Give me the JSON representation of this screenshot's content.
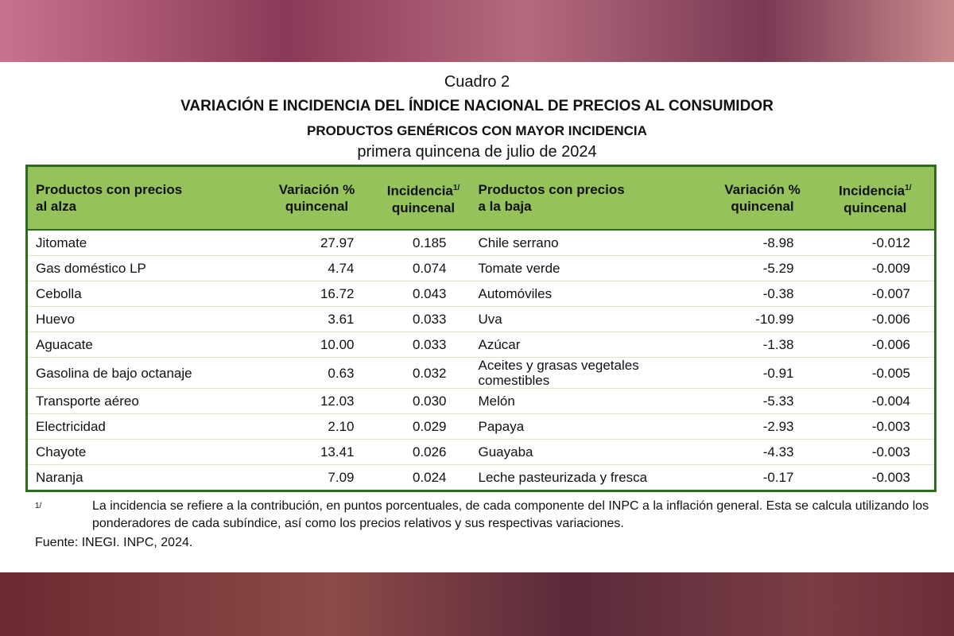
{
  "header": {
    "caption": "Cuadro 2",
    "title": "VARIACIÓN E INCIDENCIA DEL ÍNDICE NACIONAL DE PRECIOS AL CONSUMIDOR",
    "subtitle": "PRODUCTOS GENÉRICOS CON MAYOR INCIDENCIA",
    "period": "primera quincena de julio de 2024"
  },
  "table": {
    "columns": [
      {
        "lines": [
          "Productos con precios",
          "al alza"
        ]
      },
      {
        "lines": [
          "Variación %",
          "quincenal"
        ]
      },
      {
        "lines": [
          "Incidencia",
          "quincenal"
        ],
        "note": "1/"
      },
      {
        "lines": [
          "Productos con precios",
          "a la baja"
        ]
      },
      {
        "lines": [
          "Variación %",
          "quincenal"
        ]
      },
      {
        "lines": [
          "Incidencia",
          "quincenal"
        ],
        "note": "1/"
      }
    ],
    "rows": [
      [
        "Jitomate",
        "27.97",
        "0.185",
        "Chile serrano",
        "-8.98",
        "-0.012"
      ],
      [
        "Gas doméstico LP",
        "4.74",
        "0.074",
        "Tomate verde",
        "-5.29",
        "-0.009"
      ],
      [
        "Cebolla",
        "16.72",
        "0.043",
        "Automóviles",
        "-0.38",
        "-0.007"
      ],
      [
        "Huevo",
        "3.61",
        "0.033",
        "Uva",
        "-10.99",
        "-0.006"
      ],
      [
        "Aguacate",
        "10.00",
        "0.033",
        "Azúcar",
        "-1.38",
        "-0.006"
      ],
      [
        "Gasolina de bajo octanaje",
        "0.63",
        "0.032",
        "Aceites y grasas vegetales comestibles",
        "-0.91",
        "-0.005"
      ],
      [
        "Transporte aéreo",
        "12.03",
        "0.030",
        "Melón",
        "-5.33",
        "-0.004"
      ],
      [
        "Electricidad",
        "2.10",
        "0.029",
        "Papaya",
        "-2.93",
        "-0.003"
      ],
      [
        "Chayote",
        "13.41",
        "0.026",
        "Guayaba",
        "-4.33",
        "-0.003"
      ],
      [
        "Naranja",
        "7.09",
        "0.024",
        "Leche pasteurizada y fresca",
        "-0.17",
        "-0.003"
      ]
    ]
  },
  "footnote": {
    "mark": "1/",
    "text": "La incidencia se refiere a la contribución, en puntos porcentuales, de cada componente del INPC a la inflación general. Esta se calcula utilizando los ponderadores de cada subíndice, así como los precios relativos y sus respectivas variaciones."
  },
  "source": "Fuente: INEGI. INPC, 2024."
}
